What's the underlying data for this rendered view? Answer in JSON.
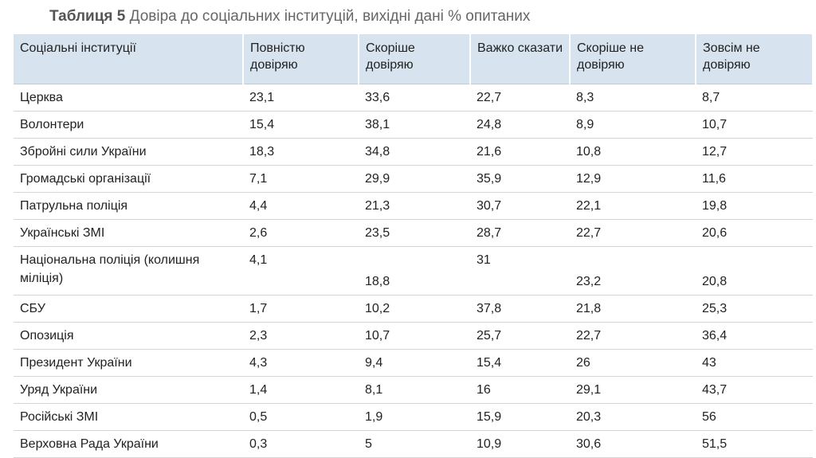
{
  "title": {
    "label": "Таблиця 5",
    "text": "Довіра до соціальних інституцій, вихідні дані % опитаних"
  },
  "table": {
    "header": [
      "Соціальні інституції",
      "Повністю довіряю",
      "Скоріше довіряю",
      "Важко сказати",
      "Скоріше не довіряю",
      "Зовсім не довіряю"
    ],
    "rows": [
      [
        "Церква",
        "23,1",
        "33,6",
        "22,7",
        "8,3",
        "8,7"
      ],
      [
        "Волонтери",
        "15,4",
        "38,1",
        "24,8",
        "8,9",
        "10,7"
      ],
      [
        "Збройні сили України",
        "18,3",
        "34,8",
        "21,6",
        "10,8",
        "12,7"
      ],
      [
        "Громадські організації",
        "7,1",
        "29,9",
        "35,9",
        "12,9",
        "11,6"
      ],
      [
        "Патрульна поліція",
        "4,4",
        "21,3",
        "30,7",
        "22,1",
        "19,8"
      ],
      [
        "Українські ЗМІ",
        "2,6",
        "23,5",
        "28,7",
        "22,7",
        "20,6"
      ],
      [
        "Національна поліція (колишня міліція)",
        "4,1",
        "18,8",
        "31",
        "23,2",
        "20,8"
      ],
      [
        "СБУ",
        "1,7",
        "10,2",
        "37,8",
        "21,8",
        "25,3"
      ],
      [
        "Опозиція",
        "2,3",
        "10,7",
        "25,7",
        "22,7",
        "36,4"
      ],
      [
        "Президент України",
        "4,3",
        "9,4",
        "15,4",
        "26",
        "43"
      ],
      [
        "Уряд України",
        "1,4",
        "8,1",
        "16",
        "29,1",
        "43,7"
      ],
      [
        "Російські ЗМІ",
        "0,5",
        "1,9",
        "15,9",
        "20,3",
        "56"
      ],
      [
        "Верховна Рада України",
        "0,3",
        "5",
        "10,9",
        "30,6",
        "51,5"
      ]
    ]
  }
}
